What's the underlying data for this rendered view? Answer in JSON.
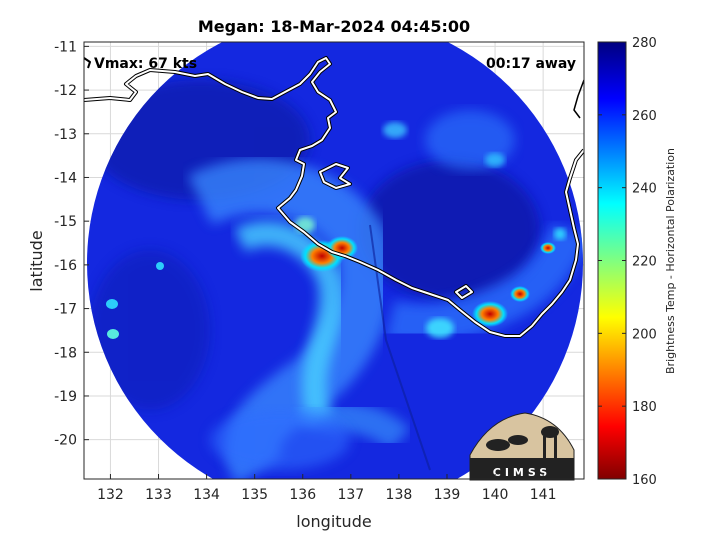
{
  "chart_data": {
    "type": "heatmap",
    "title": "Megan: 18-Mar-2024 04:45:00",
    "xlabel": "longitude",
    "ylabel": "latitude",
    "xlim": [
      131.45,
      141.85
    ],
    "ylim": [
      -20.9,
      -10.9
    ],
    "xticks": [
      132,
      133,
      134,
      135,
      136,
      137,
      138,
      139,
      140,
      141
    ],
    "yticks": [
      -11,
      -12,
      -13,
      -14,
      -15,
      -16,
      -17,
      -18,
      -19,
      -20
    ],
    "annotations": {
      "vmax": "Vmax: 67 kts",
      "time_offset": "00:17 away"
    },
    "colorbar": {
      "label": "Brightness Temp - Horizontal Polarization",
      "range": [
        160,
        280
      ],
      "ticks": [
        160,
        180,
        200,
        220,
        240,
        260,
        280
      ],
      "colormap": "jet"
    },
    "grid": true,
    "logo_text": "CIMSS"
  }
}
